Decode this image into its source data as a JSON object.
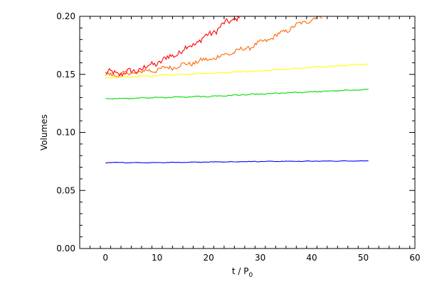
{
  "chart_data": {
    "type": "line",
    "title": "",
    "xlabel": "t / P",
    "xlabel_subscript": "0",
    "ylabel": "Volumes",
    "xlim": [
      -5,
      60
    ],
    "ylim": [
      0.0,
      0.2
    ],
    "xticks": [
      0,
      10,
      20,
      30,
      40,
      50,
      60
    ],
    "xtick_labels": [
      "0",
      "10",
      "20",
      "30",
      "40",
      "50",
      "60"
    ],
    "yticks": [
      0.0,
      0.05,
      0.1,
      0.15,
      0.2
    ],
    "ytick_labels": [
      "0.00",
      "0.05",
      "0.10",
      "0.15",
      "0.20"
    ],
    "grid": false,
    "legend": "none",
    "series": [
      {
        "color": "#ff0000",
        "x": [
          0,
          3,
          5,
          7,
          9,
          11,
          13,
          15,
          17,
          19,
          21,
          23,
          25,
          26
        ],
        "y": [
          0.151,
          0.151,
          0.152,
          0.155,
          0.158,
          0.162,
          0.166,
          0.171,
          0.176,
          0.181,
          0.187,
          0.193,
          0.198,
          0.2
        ],
        "noise": 0.0025
      },
      {
        "color": "#ff6600",
        "x": [
          0,
          5,
          10,
          15,
          18,
          21,
          24,
          27,
          30,
          33,
          36,
          39,
          42
        ],
        "y": [
          0.149,
          0.151,
          0.154,
          0.158,
          0.161,
          0.164,
          0.168,
          0.172,
          0.177,
          0.183,
          0.19,
          0.196,
          0.2
        ],
        "noise": 0.0018
      },
      {
        "color": "#ffff00",
        "x": [
          0,
          10,
          20,
          30,
          40,
          51
        ],
        "y": [
          0.147,
          0.149,
          0.151,
          0.153,
          0.156,
          0.159
        ],
        "noise": 0.0004
      },
      {
        "color": "#00dd00",
        "x": [
          0,
          10,
          20,
          30,
          40,
          51
        ],
        "y": [
          0.129,
          0.13,
          0.131,
          0.133,
          0.135,
          0.137
        ],
        "noise": 0.0004
      },
      {
        "color": "#0000ff",
        "x": [
          0,
          10,
          20,
          30,
          40,
          51
        ],
        "y": [
          0.074,
          0.074,
          0.0745,
          0.075,
          0.0752,
          0.0755
        ],
        "noise": 0.0002
      }
    ]
  }
}
